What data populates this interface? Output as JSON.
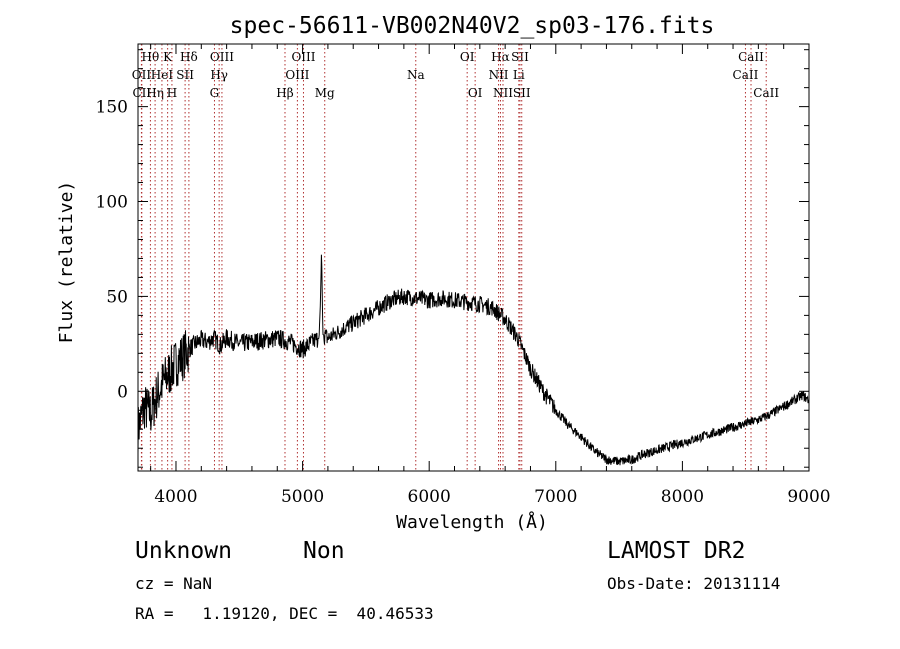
{
  "chart_data": {
    "type": "line",
    "title": "spec-56611-VB002N40V2_sp03-176.fits",
    "xlabel": "Wavelength (Å)",
    "ylabel": "Flux (relative)",
    "xlim": [
      3700,
      9000
    ],
    "ylim": [
      -42,
      183
    ],
    "x_ticks": [
      4000,
      5000,
      6000,
      7000,
      8000,
      9000
    ],
    "y_ticks": [
      0,
      50,
      100,
      150
    ],
    "grid": false,
    "series": [
      {
        "x": [
          3700,
          3750,
          3800,
          3850,
          3900,
          3950,
          4000,
          4050,
          4100,
          4150,
          4200,
          4250,
          4300,
          4350,
          4400,
          4500,
          4600,
          4700,
          4800,
          4900,
          5000,
          5100,
          5130,
          5140,
          5150,
          5160,
          5200,
          5300,
          5400,
          5500,
          5600,
          5700,
          5800,
          5900,
          6000,
          6100,
          6200,
          6300,
          6400,
          6500,
          6600,
          6700,
          6800,
          6900,
          7000,
          7100,
          7200,
          7300,
          7400,
          7500,
          7600,
          7700,
          7800,
          7900,
          8000,
          8100,
          8200,
          8300,
          8400,
          8500,
          8600,
          8700,
          8800,
          8900,
          8950,
          9000
        ],
        "y": [
          -20,
          -8,
          -12,
          -2,
          5,
          10,
          15,
          18,
          22,
          25,
          27,
          26,
          28,
          24,
          28,
          25,
          26,
          27,
          28,
          26,
          22,
          27,
          28,
          45,
          75,
          30,
          28,
          32,
          36,
          40,
          44,
          48,
          50,
          49,
          48,
          49,
          48,
          47,
          46,
          44,
          38,
          28,
          12,
          0,
          -10,
          -18,
          -24,
          -31,
          -36,
          -37,
          -36,
          -33,
          -31,
          -29,
          -27,
          -25,
          -23,
          -21,
          -19,
          -17,
          -15,
          -12,
          -8,
          -4,
          -2,
          -5
        ]
      }
    ],
    "line_labels": [
      {
        "label": "Hθ",
        "x": 3798,
        "row": 1
      },
      {
        "label": "OII",
        "x": 3727,
        "row": 2
      },
      {
        "label": "CII",
        "x": 3730,
        "row": 3
      },
      {
        "label": "Hη",
        "x": 3835,
        "row": 3
      },
      {
        "label": "HeI",
        "x": 3889,
        "row": 2
      },
      {
        "label": "K",
        "x": 3934,
        "row": 1
      },
      {
        "label": "H",
        "x": 3968,
        "row": 3
      },
      {
        "label": "Hδ",
        "x": 4102,
        "row": 1
      },
      {
        "label": "SII",
        "x": 4072,
        "row": 2
      },
      {
        "label": "OIII",
        "x": 4363,
        "row": 1
      },
      {
        "label": "Hγ",
        "x": 4341,
        "row": 2
      },
      {
        "label": "G",
        "x": 4304,
        "row": 3
      },
      {
        "label": "Hβ",
        "x": 4861,
        "row": 3
      },
      {
        "label": "OIII",
        "x": 5007,
        "row": 1
      },
      {
        "label": "OIII",
        "x": 4959,
        "row": 2
      },
      {
        "label": "Mg",
        "x": 5175,
        "row": 3
      },
      {
        "label": "Na",
        "x": 5894,
        "row": 2
      },
      {
        "label": "OI",
        "x": 6300,
        "row": 1
      },
      {
        "label": "OI",
        "x": 6363,
        "row": 3
      },
      {
        "label": "Hα",
        "x": 6563,
        "row": 1
      },
      {
        "label": "NII",
        "x": 6548,
        "row": 2
      },
      {
        "label": "NII",
        "x": 6583,
        "row": 3
      },
      {
        "label": "SII",
        "x": 6717,
        "row": 1
      },
      {
        "label": "Li",
        "x": 6708,
        "row": 2
      },
      {
        "label": "SII",
        "x": 6731,
        "row": 3
      },
      {
        "label": "CaII",
        "x": 8542,
        "row": 1
      },
      {
        "label": "CaII",
        "x": 8498,
        "row": 2
      },
      {
        "label": "CaII",
        "x": 8662,
        "row": 3
      }
    ]
  },
  "info": {
    "class_label": "Unknown",
    "subclass_label": "Non",
    "survey_label": "LAMOST DR2",
    "cz_text": "cz = NaN",
    "obsdate_text": "Obs-Date: 20131114",
    "radec_text": "RA =   1.19120, DEC =  40.46533"
  }
}
